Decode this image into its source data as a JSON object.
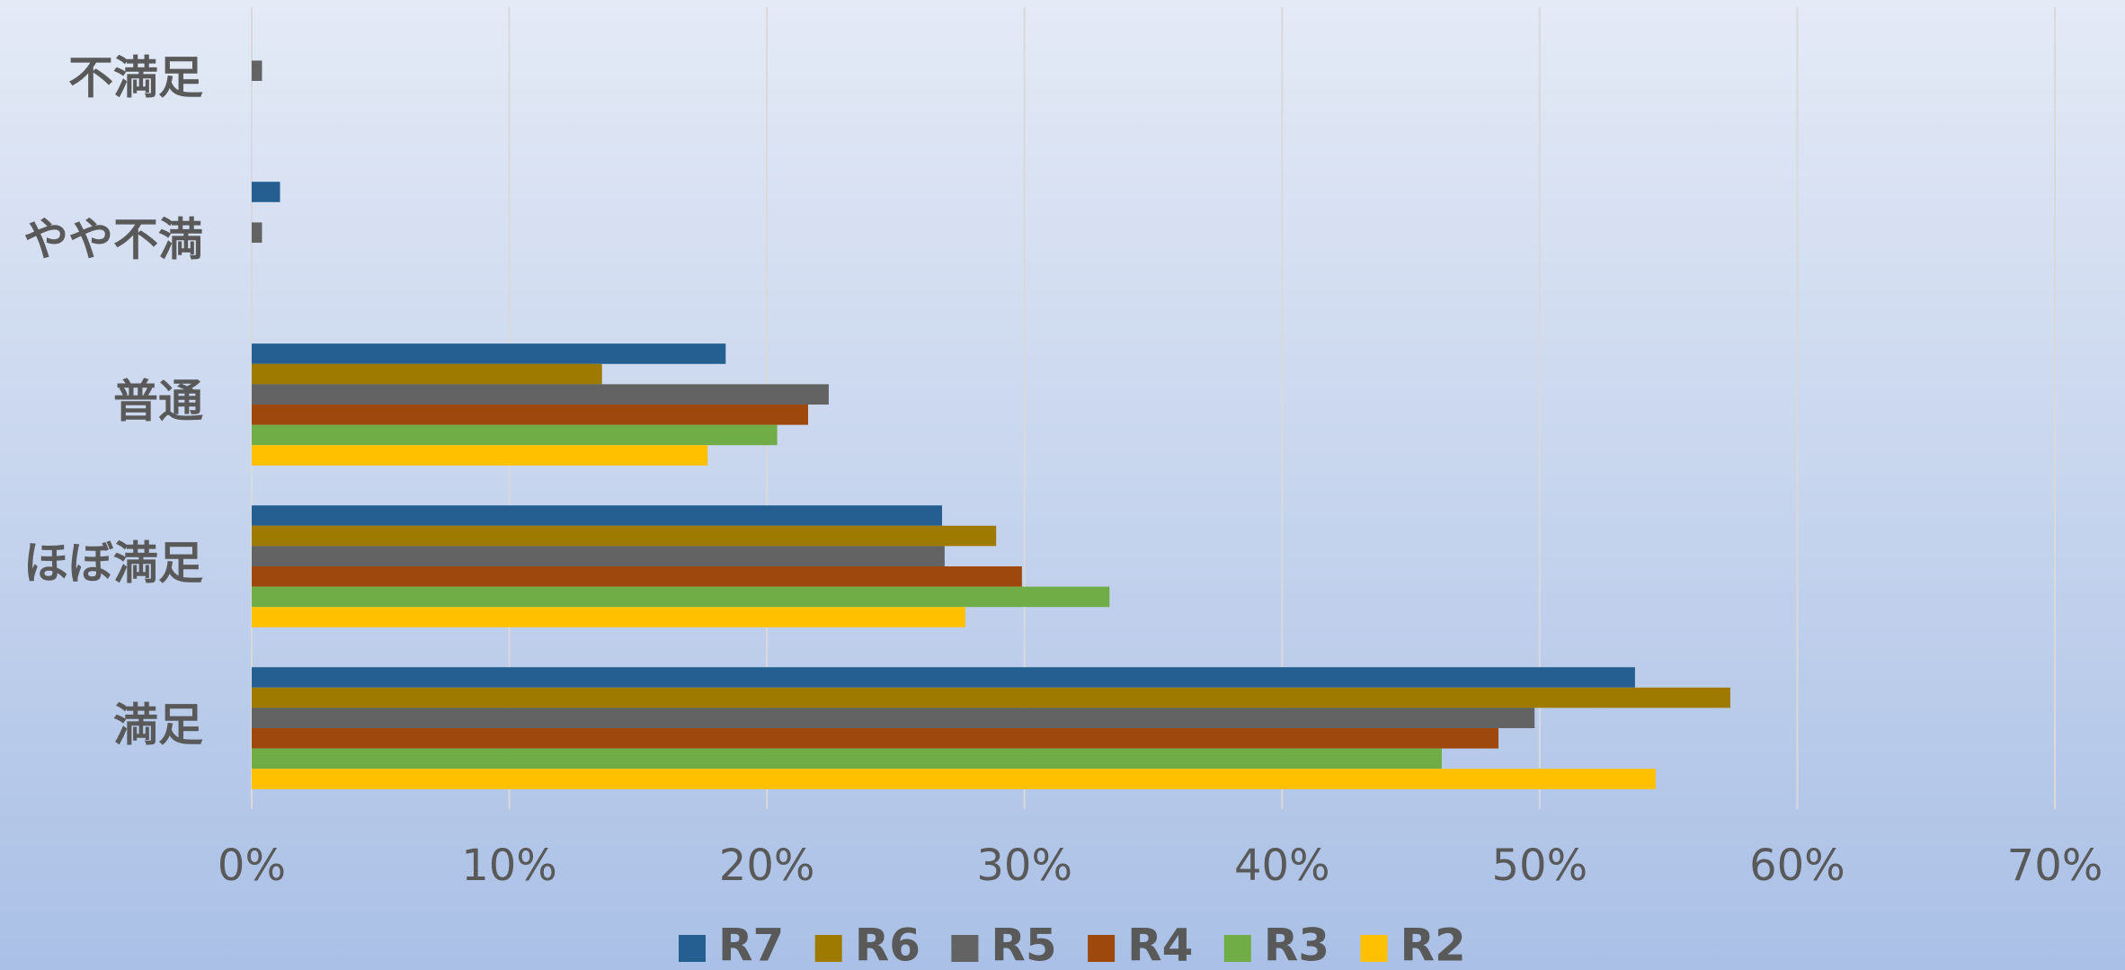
{
  "chart_data": {
    "type": "barh",
    "categories": [
      "不満足",
      "やや不満",
      "普通",
      "ほぼ満足",
      "満足"
    ],
    "series": [
      {
        "name": "R7",
        "color": "#255e91",
        "values": [
          0,
          1.1,
          18.4,
          26.8,
          53.7
        ]
      },
      {
        "name": "R6",
        "color": "#9e7a00",
        "values": [
          0,
          0,
          13.6,
          28.9,
          57.4
        ]
      },
      {
        "name": "R5",
        "color": "#636363",
        "values": [
          0.4,
          0.4,
          22.4,
          26.9,
          49.8
        ]
      },
      {
        "name": "R4",
        "color": "#9e480e",
        "values": [
          0,
          0,
          21.6,
          29.9,
          48.4
        ]
      },
      {
        "name": "R3",
        "color": "#70ad47",
        "values": [
          0,
          0,
          20.4,
          33.3,
          46.2
        ]
      },
      {
        "name": "R2",
        "color": "#ffc000",
        "values": [
          0,
          0,
          17.7,
          27.7,
          54.5
        ]
      }
    ],
    "xlim": [
      0,
      70
    ],
    "xticks": [
      {
        "value": 0,
        "label": "0%"
      },
      {
        "value": 10,
        "label": "10%"
      },
      {
        "value": 20,
        "label": "20%"
      },
      {
        "value": 30,
        "label": "30%"
      },
      {
        "value": 40,
        "label": "40%"
      },
      {
        "value": 50,
        "label": "50%"
      },
      {
        "value": 60,
        "label": "60%"
      },
      {
        "value": 70,
        "label": "70%"
      }
    ],
    "grid": true,
    "legend": "bottom"
  }
}
